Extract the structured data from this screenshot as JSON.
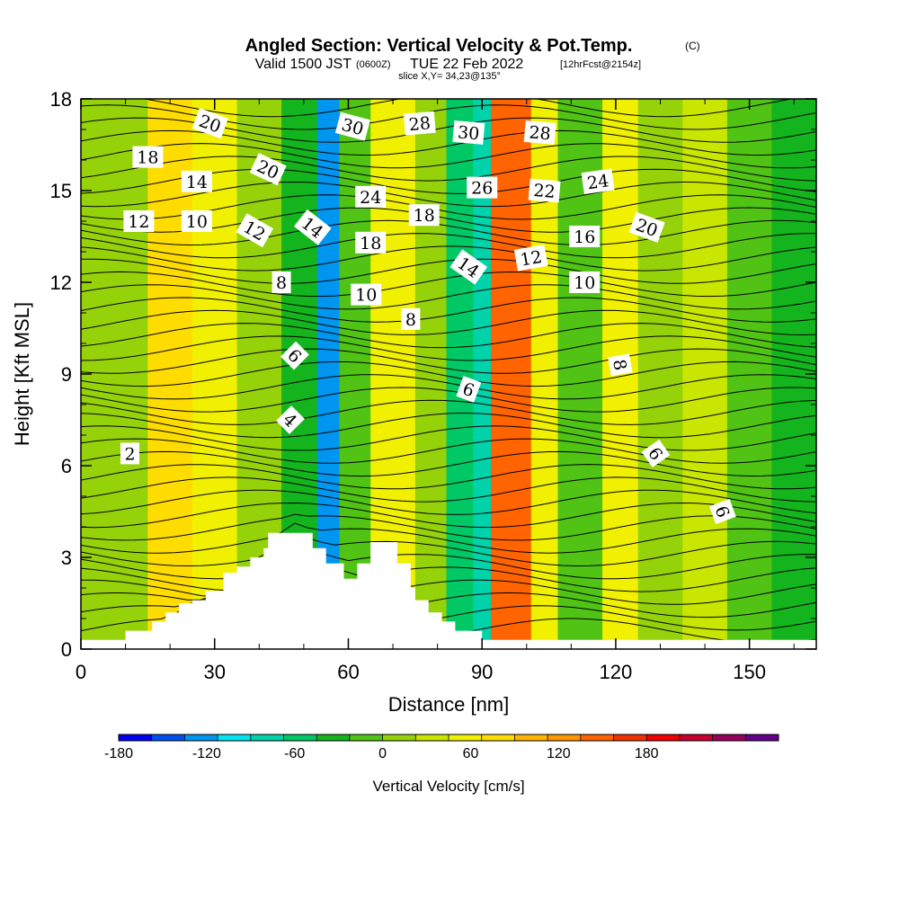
{
  "chart_data": {
    "type": "heatmap",
    "title": "Angled Section: Vertical Velocity & Pot.Temp.",
    "title_badge": "(C)",
    "subtitle": {
      "pre": "Valid 1500 JST",
      "utc": "(0600Z)",
      "date": "TUE 22 Feb 2022",
      "fcst": "[12hrFcst@2154z]"
    },
    "slice_info": "slice X,Y= 34,23@135°",
    "xlabel": "Distance [nm]",
    "ylabel": "Height [Kft MSL]",
    "xlim": [
      0,
      165
    ],
    "ylim": [
      0,
      18
    ],
    "xticks": [
      0,
      30,
      60,
      90,
      120,
      150
    ],
    "yticks": [
      0,
      3,
      6,
      9,
      12,
      15,
      18
    ],
    "colorbar": {
      "label": "Vertical Velocity [cm/s]",
      "tick_values": [
        -180,
        -120,
        -60,
        0,
        60,
        120,
        180
      ],
      "colors": [
        "#0000f0",
        "#0050f0",
        "#0096f0",
        "#00e6f0",
        "#00d2aa",
        "#00c864",
        "#14b41e",
        "#50c314",
        "#96d20a",
        "#c8e600",
        "#f0f000",
        "#ffdc00",
        "#ffb400",
        "#ff9600",
        "#ff6400",
        "#f03200",
        "#f00000",
        "#c80032",
        "#96005a",
        "#64008c"
      ]
    },
    "vertical_velocity_columns": [
      {
        "x": 0,
        "w": 15,
        "value": -20
      },
      {
        "x": 15,
        "w": 10,
        "value": 40
      },
      {
        "x": 25,
        "w": 10,
        "value": 15
      },
      {
        "x": 35,
        "w": 10,
        "value": -30
      },
      {
        "x": 45,
        "w": 8,
        "value": -60
      },
      {
        "x": 53,
        "w": 5,
        "value": -160
      },
      {
        "x": 58,
        "w": 7,
        "value": -50
      },
      {
        "x": 65,
        "w": 10,
        "value": 35
      },
      {
        "x": 75,
        "w": 7,
        "value": -20
      },
      {
        "x": 82,
        "w": 6,
        "value": -90
      },
      {
        "x": 88,
        "w": 4,
        "value": -120
      },
      {
        "x": 92,
        "w": 9,
        "value": 110
      },
      {
        "x": 101,
        "w": 6,
        "value": 20
      },
      {
        "x": 107,
        "w": 10,
        "value": -40
      },
      {
        "x": 117,
        "w": 8,
        "value": 20
      },
      {
        "x": 125,
        "w": 10,
        "value": -30
      },
      {
        "x": 135,
        "w": 10,
        "value": 10
      },
      {
        "x": 145,
        "w": 10,
        "value": -50
      },
      {
        "x": 155,
        "w": 10,
        "value": -70
      }
    ],
    "terrain": [
      [
        0,
        0.3
      ],
      [
        10,
        0.3
      ],
      [
        10,
        0.6
      ],
      [
        16,
        0.6
      ],
      [
        16,
        0.9
      ],
      [
        19,
        0.9
      ],
      [
        19,
        1.2
      ],
      [
        22,
        1.2
      ],
      [
        22,
        1.5
      ],
      [
        25,
        1.5
      ],
      [
        25,
        1.6
      ],
      [
        28,
        1.6
      ],
      [
        28,
        1.9
      ],
      [
        32,
        1.9
      ],
      [
        32,
        2.5
      ],
      [
        35,
        2.5
      ],
      [
        35,
        2.7
      ],
      [
        38,
        2.7
      ],
      [
        38,
        3.0
      ],
      [
        41,
        3.0
      ],
      [
        41,
        3.3
      ],
      [
        42,
        3.3
      ],
      [
        42,
        3.8
      ],
      [
        52,
        3.8
      ],
      [
        52,
        3.3
      ],
      [
        55,
        3.3
      ],
      [
        55,
        2.8
      ],
      [
        59,
        2.8
      ],
      [
        59,
        2.3
      ],
      [
        62,
        2.3
      ],
      [
        62,
        2.8
      ],
      [
        65,
        2.8
      ],
      [
        65,
        3.5
      ],
      [
        71,
        3.5
      ],
      [
        71,
        2.8
      ],
      [
        74,
        2.8
      ],
      [
        74,
        2.0
      ],
      [
        75,
        2.0
      ],
      [
        75,
        1.6
      ],
      [
        78,
        1.6
      ],
      [
        78,
        1.2
      ],
      [
        81,
        1.2
      ],
      [
        81,
        0.9
      ],
      [
        84,
        0.9
      ],
      [
        84,
        0.6
      ],
      [
        90,
        0.6
      ],
      [
        90,
        0.3
      ],
      [
        165,
        0.3
      ]
    ],
    "contour_labels": [
      {
        "x": 29,
        "y": 17.2,
        "text": "20",
        "angle": 20
      },
      {
        "x": 15,
        "y": 16.1,
        "text": "18",
        "angle": 0
      },
      {
        "x": 26,
        "y": 15.3,
        "text": "14",
        "angle": 0
      },
      {
        "x": 42,
        "y": 15.7,
        "text": "20",
        "angle": 25
      },
      {
        "x": 13,
        "y": 14.0,
        "text": "12",
        "angle": 0
      },
      {
        "x": 26,
        "y": 14.0,
        "text": "10",
        "angle": 0
      },
      {
        "x": 39,
        "y": 13.7,
        "text": "12",
        "angle": 30
      },
      {
        "x": 52,
        "y": 13.8,
        "text": "14",
        "angle": 38
      },
      {
        "x": 61,
        "y": 17.1,
        "text": "30",
        "angle": 15
      },
      {
        "x": 76,
        "y": 17.2,
        "text": "28",
        "angle": -5
      },
      {
        "x": 87,
        "y": 16.9,
        "text": "30",
        "angle": 5
      },
      {
        "x": 103,
        "y": 16.9,
        "text": "28",
        "angle": 5
      },
      {
        "x": 65,
        "y": 14.8,
        "text": "24",
        "angle": 0
      },
      {
        "x": 90,
        "y": 15.1,
        "text": "26",
        "angle": 0
      },
      {
        "x": 104,
        "y": 15.0,
        "text": "22",
        "angle": 5
      },
      {
        "x": 116,
        "y": 15.3,
        "text": "24",
        "angle": -8
      },
      {
        "x": 77,
        "y": 14.2,
        "text": "18",
        "angle": 0
      },
      {
        "x": 65,
        "y": 13.3,
        "text": "18",
        "angle": 0
      },
      {
        "x": 87,
        "y": 12.5,
        "text": "14",
        "angle": 35
      },
      {
        "x": 101,
        "y": 12.8,
        "text": "12",
        "angle": -10
      },
      {
        "x": 113,
        "y": 13.5,
        "text": "16",
        "angle": 0
      },
      {
        "x": 127,
        "y": 13.8,
        "text": "20",
        "angle": 20
      },
      {
        "x": 45,
        "y": 12.0,
        "text": "8",
        "angle": 0
      },
      {
        "x": 64,
        "y": 11.6,
        "text": "10",
        "angle": 0
      },
      {
        "x": 113,
        "y": 12.0,
        "text": "10",
        "angle": 0
      },
      {
        "x": 74,
        "y": 10.8,
        "text": "8",
        "angle": 0
      },
      {
        "x": 48,
        "y": 9.6,
        "text": "6",
        "angle": 45
      },
      {
        "x": 121,
        "y": 9.3,
        "text": "8",
        "angle": 80
      },
      {
        "x": 87,
        "y": 8.5,
        "text": "6",
        "angle": 20
      },
      {
        "x": 47,
        "y": 7.5,
        "text": "4",
        "angle": 45
      },
      {
        "x": 11,
        "y": 6.4,
        "text": "2",
        "angle": 0
      },
      {
        "x": 129,
        "y": 6.4,
        "text": "6",
        "angle": 55
      },
      {
        "x": 144,
        "y": 4.5,
        "text": "6",
        "angle": 70
      }
    ]
  }
}
